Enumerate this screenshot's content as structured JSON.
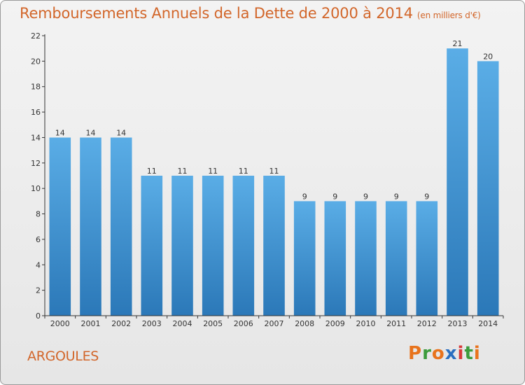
{
  "chart_data": {
    "type": "bar",
    "title": "Remboursements Annuels de la Dette de 2000 à 2014",
    "unit": "(en milliers d'€)",
    "categories": [
      "2000",
      "2001",
      "2002",
      "2003",
      "2004",
      "2005",
      "2006",
      "2007",
      "2008",
      "2009",
      "2010",
      "2011",
      "2012",
      "2013",
      "2014"
    ],
    "values": [
      14,
      14,
      14,
      11,
      11,
      11,
      11,
      11,
      9,
      9,
      9,
      9,
      9,
      21,
      20
    ],
    "ylim": [
      0,
      22
    ],
    "yticks": [
      0,
      2,
      4,
      6,
      8,
      10,
      12,
      14,
      16,
      18,
      20,
      22
    ],
    "grid": false,
    "bar_color_top": "#5aade6",
    "bar_color_bottom": "#2b78b8"
  },
  "commune": "ARGOULES",
  "logo": {
    "letters": [
      "P",
      "r",
      "o",
      "x",
      "i",
      "t",
      "i"
    ],
    "colors": [
      "#e8731c",
      "#3c9c3c",
      "#e8731c",
      "#2a6fc0",
      "#d83a3a",
      "#3c9c3c",
      "#e8731c"
    ]
  },
  "colors": {
    "title": "#d2662a",
    "axis": "#333333"
  }
}
